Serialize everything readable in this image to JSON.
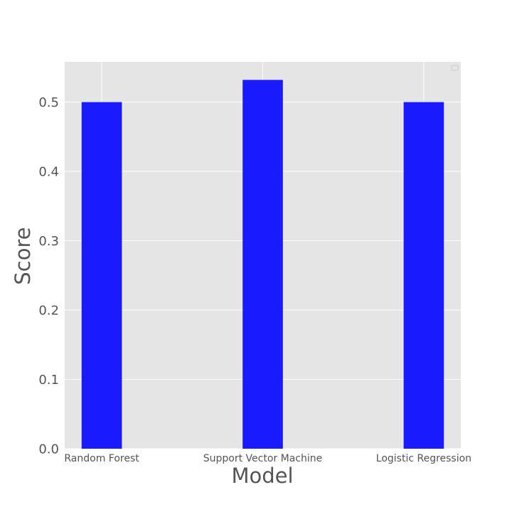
{
  "chart_data": {
    "type": "bar",
    "title": "",
    "xlabel": "Model",
    "ylabel": "Score",
    "categories": [
      "Random Forest",
      "Support Vector Machine",
      "Logistic Regression"
    ],
    "values": [
      0.5,
      0.532,
      0.5
    ],
    "ylim": [
      0,
      0.558
    ],
    "yticks": [
      "0.0",
      "0.1",
      "0.2",
      "0.3",
      "0.4",
      "0.5"
    ],
    "grid": true,
    "legend": "empty legend box, upper right",
    "colors": {
      "bar": "#1a1aff",
      "plot_background": "#e5e5e5",
      "grid": "#ffffff",
      "text": "#555555"
    }
  }
}
